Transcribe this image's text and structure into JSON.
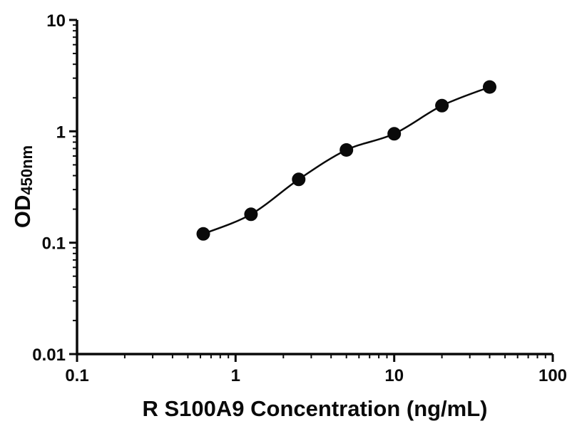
{
  "chart_data": {
    "type": "scatter",
    "title": "",
    "xlabel": "R S100A9 Concentration (ng/mL)",
    "ylabel_main": "OD",
    "ylabel_sub": "450nm",
    "xscale": "log",
    "yscale": "log",
    "xlim": [
      0.1,
      100
    ],
    "ylim": [
      0.01,
      10
    ],
    "grid": false,
    "legend": null,
    "x": [
      0.625,
      1.25,
      2.5,
      5,
      10,
      20,
      40
    ],
    "y": [
      0.12,
      0.18,
      0.37,
      0.68,
      0.95,
      1.7,
      2.5
    ],
    "x_ticks": [
      {
        "v": 0.1,
        "label": "0.1"
      },
      {
        "v": 1,
        "label": "1"
      },
      {
        "v": 10,
        "label": "10"
      },
      {
        "v": 100,
        "label": "100"
      }
    ],
    "y_ticks": [
      {
        "v": 0.01,
        "label": "0.01"
      },
      {
        "v": 0.1,
        "label": "0.1"
      },
      {
        "v": 1,
        "label": "1"
      },
      {
        "v": 10,
        "label": "10"
      }
    ],
    "axis_color": "#0a0a0a",
    "line_color": "#0a0a0a",
    "marker_color": "#0a0a0a"
  }
}
